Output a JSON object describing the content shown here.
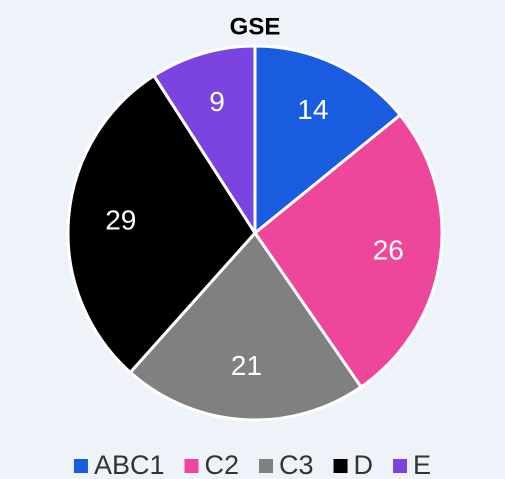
{
  "chart_data": {
    "type": "pie",
    "title": "GSE",
    "categories": [
      "ABC1",
      "C2",
      "C3",
      "D",
      "E"
    ],
    "values": [
      14,
      26,
      21,
      29,
      9
    ],
    "colors": [
      "#1a5ce0",
      "#ee469b",
      "#808080",
      "#000000",
      "#7b44e0"
    ],
    "legend": "bottom"
  }
}
